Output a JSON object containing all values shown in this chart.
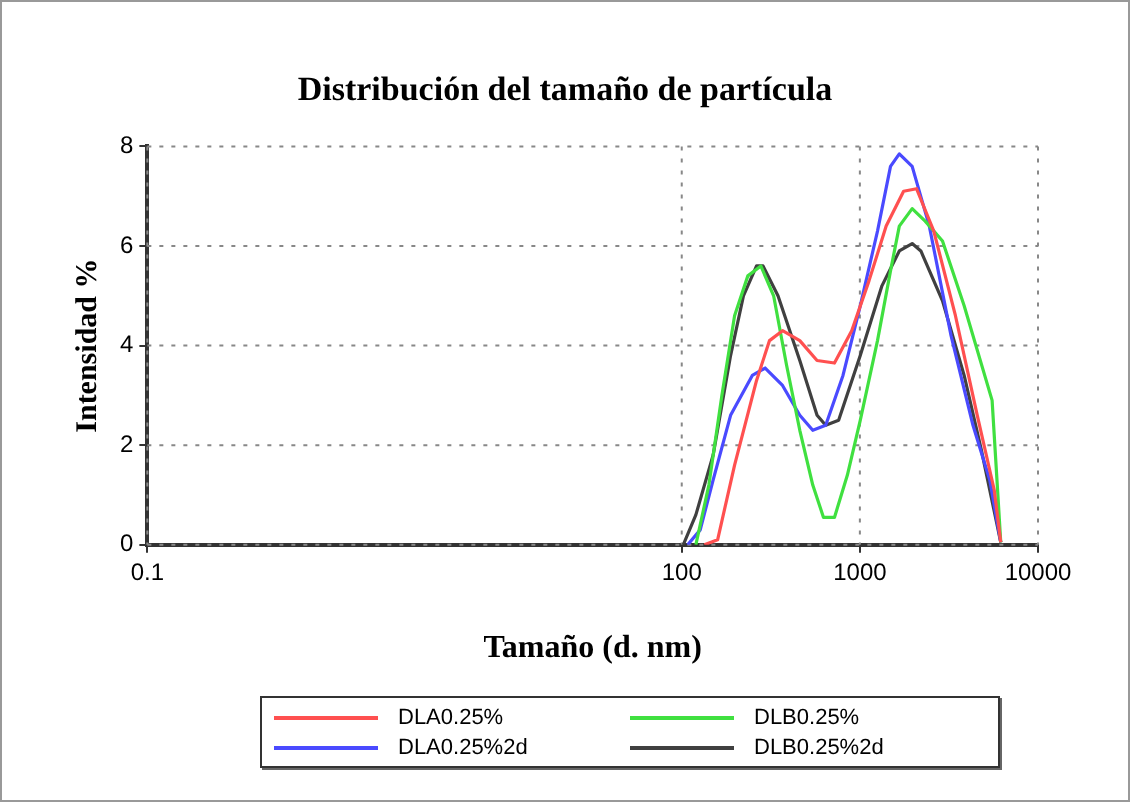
{
  "chart_data": {
    "type": "line",
    "title": "Distribución del tamaño de partícula",
    "xlabel": "Tamaño (d. nm)",
    "ylabel": "Intensidad %",
    "log": "x",
    "xlim": [
      0.1,
      10000
    ],
    "xticks": [
      0.1,
      100,
      1000,
      10000
    ],
    "ylim": [
      0,
      8
    ],
    "yticks": [
      0,
      2,
      4,
      6,
      8
    ],
    "grid": true,
    "legend": "bottom",
    "marker": "none",
    "line_style": "solid",
    "series": [
      {
        "name": "DLA0.25%",
        "color": "#ff5050",
        "x": [
          134,
          159,
          198,
          263,
          311,
          368,
          460,
          575,
          720,
          900,
          1125,
          1405,
          1760,
          2080,
          2600,
          3440,
          4560,
          5680,
          6180
        ],
        "values": [
          0,
          0.1,
          1.6,
          3.3,
          4.1,
          4.3,
          4.1,
          3.7,
          3.65,
          4.3,
          5.3,
          6.4,
          7.1,
          7.15,
          6.3,
          4.6,
          2.6,
          1.1,
          0.05
        ]
      },
      {
        "name": "DLB0.25%",
        "color": "#40e040",
        "x": [
          120,
          142,
          168,
          198,
          235,
          278,
          328,
          388,
          460,
          544,
          625,
          720,
          851,
          1005,
          1256,
          1486,
          1665,
          1966,
          2325,
          2910,
          3850,
          5525,
          6180
        ],
        "values": [
          0,
          1.2,
          3,
          4.6,
          5.4,
          5.6,
          5.0,
          3.6,
          2.3,
          1.2,
          0.55,
          0.55,
          1.4,
          2.5,
          4.1,
          5.5,
          6.4,
          6.75,
          6.5,
          6.1,
          4.8,
          2.9,
          0.05
        ]
      },
      {
        "name": "DLA0.25%2d",
        "color": "#4a4aff",
        "x": [
          108,
          127,
          150,
          188,
          249,
          294,
          368,
          460,
          544,
          643,
          804,
          1005,
          1256,
          1486,
          1665,
          1966,
          2454,
          3250,
          4315,
          5360,
          6180
        ],
        "values": [
          0,
          0.3,
          1.3,
          2.6,
          3.4,
          3.55,
          3.2,
          2.6,
          2.3,
          2.4,
          3.4,
          4.8,
          6.3,
          7.6,
          7.85,
          7.6,
          6.4,
          4.2,
          2.4,
          1.3,
          0.05
        ]
      },
      {
        "name": "DLB0.25%2d",
        "color": "#404040",
        "x": [
          102,
          120,
          150,
          188,
          222,
          263,
          286,
          347,
          460,
          575,
          643,
          760,
          1005,
          1330,
          1665,
          1966,
          2200,
          2910,
          3850,
          4810,
          6180
        ],
        "values": [
          0,
          0.6,
          1.8,
          3.8,
          5,
          5.6,
          5.6,
          5.0,
          3.7,
          2.6,
          2.4,
          2.5,
          3.8,
          5.2,
          5.9,
          6.05,
          5.9,
          4.9,
          3.4,
          1.9,
          0.05
        ]
      }
    ]
  }
}
